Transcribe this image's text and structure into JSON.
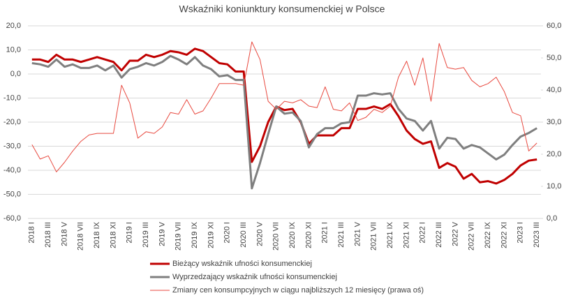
{
  "chart_data": {
    "type": "line",
    "title": "Wskaźniki koniunktury konsumenckiej w Polsce",
    "categories": [
      "2018 I",
      null,
      "2018 III",
      null,
      "2018 V",
      null,
      "2018 VII",
      null,
      "2018 IX",
      null,
      "2018 XI",
      null,
      "2019 I",
      null,
      "2019 III",
      null,
      "2019 V",
      null,
      "2019 VII",
      null,
      "2019 IX",
      null,
      "2019 XI",
      null,
      "2020 I",
      null,
      "2020 III",
      null,
      "2020 V",
      null,
      "2020 VII",
      null,
      "2020 IX",
      null,
      "2020 XI",
      null,
      "2021 I",
      null,
      "2021 III",
      null,
      "2021 V",
      null,
      "2021 VII",
      null,
      "2021 IX",
      null,
      "2021 XI",
      null,
      "2022 I",
      null,
      "2022 III",
      null,
      "2022 V",
      null,
      "2022 VII",
      null,
      "2022 IX",
      null,
      "2022 XI",
      null,
      "2023 I",
      null,
      "2023 III"
    ],
    "series": [
      {
        "name": "Bieżący wskaźnik ufności konsumenckiej",
        "color": "#c00000",
        "width": 3,
        "values": [
          6,
          6,
          5,
          8,
          6,
          6,
          5,
          6,
          7,
          6,
          5,
          1.5,
          5.5,
          5.5,
          8,
          7,
          8,
          9.5,
          9,
          8,
          10.5,
          9.5,
          7,
          4.5,
          4,
          1,
          1,
          -36.5,
          -30,
          -20,
          -13.5,
          -15,
          -14.5,
          -20,
          -29,
          -25.5,
          -25.5,
          -25.5,
          -22.5,
          -22.5,
          -14.5,
          -14.5,
          -13.5,
          -14.5,
          -12.5,
          -17.5,
          -23.5,
          -27,
          -29,
          -28,
          -39,
          -37,
          -38.5,
          -43.5,
          -41.5,
          -45,
          -44.5,
          -45.5,
          -44,
          -41.5,
          -38,
          -36,
          -35.5
        ]
      },
      {
        "name": "Wyprzedzający wskaźnik ufności konsumenckiej",
        "color": "#7f7f7f",
        "width": 3,
        "values": [
          4.5,
          4,
          3,
          6,
          3,
          4,
          2.5,
          2.5,
          3.5,
          1.5,
          3.5,
          -1.5,
          2,
          3,
          4.5,
          3.5,
          5,
          7.5,
          6,
          4,
          7,
          3.5,
          2,
          -1,
          -0.5,
          -2.5,
          -2.5,
          -47.5,
          -37,
          -25,
          -13.5,
          -16.5,
          -16,
          -19.5,
          -30.5,
          -25,
          -22.5,
          -22.5,
          -20.5,
          -20,
          -9,
          -9,
          -8,
          -8.5,
          -8,
          -14.5,
          -18.5,
          -19.5,
          -23.5,
          -19.5,
          -31,
          -26.5,
          -27,
          -31,
          -29.5,
          -30.5,
          -33,
          -35.5,
          -33.5,
          -29.5,
          -26,
          -24.5,
          -22.5
        ]
      },
      {
        "name": "Zmiany cen konsumpcyjnych w ciągu najbliższych 12 miesięcy (prawa oś)",
        "color": "#e8493f",
        "width": 1,
        "axis": "y2",
        "values": [
          23,
          18.5,
          19.5,
          14.5,
          17.5,
          21,
          24,
          26,
          26.5,
          26.5,
          26.5,
          41.5,
          36,
          25,
          27,
          26.5,
          28.5,
          33,
          32.5,
          37,
          32.5,
          33.5,
          37.5,
          42,
          42,
          42,
          41.5,
          55,
          49.5,
          36.5,
          34,
          36.5,
          36,
          37,
          35,
          34.5,
          41,
          34,
          33.5,
          36,
          30.5,
          31.5,
          34,
          33,
          35,
          44,
          49,
          41.5,
          50,
          36.5,
          54.5,
          47,
          46.5,
          47,
          43,
          41,
          42,
          44,
          39.5,
          33,
          32,
          21,
          23.5
        ]
      }
    ],
    "ylim": [
      -60,
      20
    ],
    "yticks": [
      {
        "value": -60,
        "label": "-60,0"
      },
      {
        "value": -50,
        "label": "-50,0"
      },
      {
        "value": -40,
        "label": "-40,0"
      },
      {
        "value": -30,
        "label": "-30,0"
      },
      {
        "value": -20,
        "label": "-20,0"
      },
      {
        "value": -10,
        "label": "-10,0"
      },
      {
        "value": 0,
        "label": "0,0"
      },
      {
        "value": 10,
        "label": "10,0"
      },
      {
        "value": 20,
        "label": "20,0"
      }
    ],
    "y2lim": [
      0,
      60
    ],
    "y2ticks": [
      {
        "value": 0,
        "label": "0,0"
      },
      {
        "value": 10,
        "label": "10,0"
      },
      {
        "value": 20,
        "label": "20,0"
      },
      {
        "value": 30,
        "label": "30,0"
      },
      {
        "value": 40,
        "label": "40,0"
      },
      {
        "value": 50,
        "label": "50,0"
      },
      {
        "value": 60,
        "label": "60,0"
      }
    ],
    "grid": true,
    "legend": "bottom"
  }
}
